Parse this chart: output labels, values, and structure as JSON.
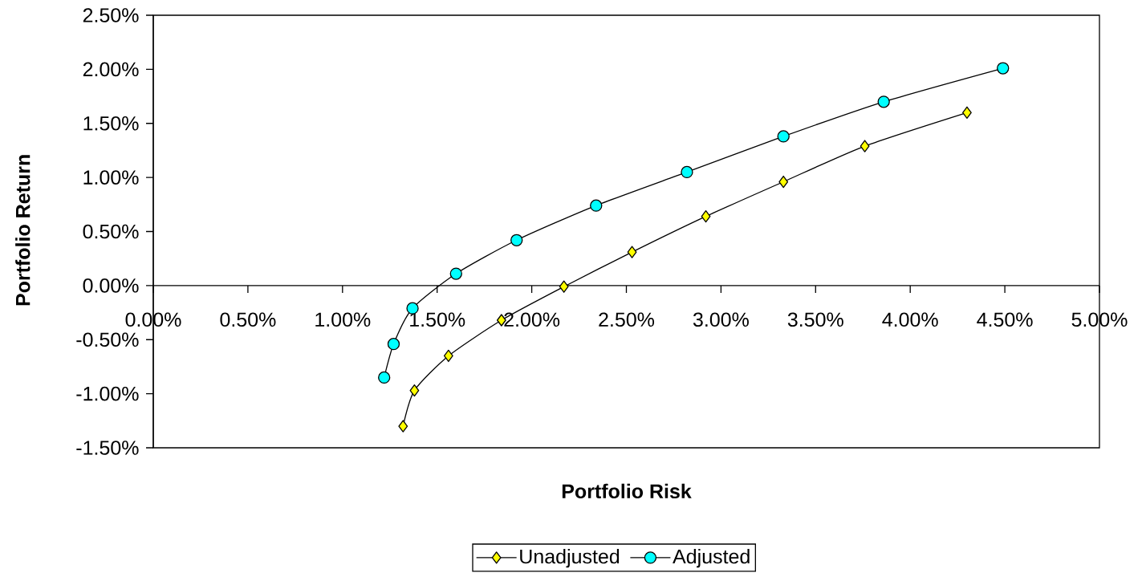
{
  "chart_data": {
    "type": "line",
    "xlabel": "Portfolio Risk",
    "ylabel": "Portfolio Return",
    "xlim": [
      0,
      5
    ],
    "ylim": [
      -1.5,
      2.5
    ],
    "xticks": [
      {
        "value": 0,
        "label": "0.00%"
      },
      {
        "value": 0.5,
        "label": "0.50%"
      },
      {
        "value": 1,
        "label": "1.00%"
      },
      {
        "value": 1.5,
        "label": "1.50%"
      },
      {
        "value": 2,
        "label": "2.00%"
      },
      {
        "value": 2.5,
        "label": "2.50%"
      },
      {
        "value": 3,
        "label": "3.00%"
      },
      {
        "value": 3.5,
        "label": "3.50%"
      },
      {
        "value": 4,
        "label": "4.00%"
      },
      {
        "value": 4.5,
        "label": "4.50%"
      },
      {
        "value": 5,
        "label": "5.00%"
      }
    ],
    "yticks": [
      {
        "value": -1.5,
        "label": "-1.50%"
      },
      {
        "value": -1,
        "label": "-1.00%"
      },
      {
        "value": -0.5,
        "label": "-0.50%"
      },
      {
        "value": 0,
        "label": "0.00%"
      },
      {
        "value": 0.5,
        "label": "0.50%"
      },
      {
        "value": 1,
        "label": "1.00%"
      },
      {
        "value": 1.5,
        "label": "1.50%"
      },
      {
        "value": 2,
        "label": "2.00%"
      },
      {
        "value": 2.5,
        "label": "2.50%"
      }
    ],
    "legend": "bottom",
    "line_style": "solid",
    "series": [
      {
        "name": "Unadjusted",
        "color": "#ffff00",
        "marker": "diamond",
        "x": [
          1.32,
          1.38,
          1.56,
          1.84,
          2.17,
          2.53,
          2.92,
          3.33,
          3.76,
          4.3
        ],
        "values": [
          -1.3,
          -0.97,
          -0.65,
          -0.32,
          -0.01,
          0.31,
          0.64,
          0.96,
          1.29,
          1.6
        ]
      },
      {
        "name": "Adjusted",
        "color": "#00ffff",
        "marker": "circle",
        "x": [
          1.22,
          1.27,
          1.37,
          1.6,
          1.92,
          2.34,
          2.82,
          3.33,
          3.86,
          4.49
        ],
        "values": [
          -0.85,
          -0.54,
          -0.21,
          0.11,
          0.42,
          0.74,
          1.05,
          1.38,
          1.7,
          2.01
        ]
      }
    ]
  }
}
